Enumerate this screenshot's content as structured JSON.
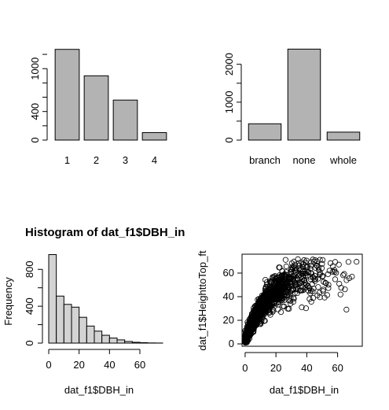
{
  "chart_data": [
    {
      "type": "bar",
      "categories": [
        "1",
        "2",
        "3",
        "4"
      ],
      "values": [
        1270,
        900,
        560,
        105
      ],
      "yticks": [
        0,
        400,
        1000
      ],
      "ylim": [
        0,
        1300
      ]
    },
    {
      "type": "bar",
      "categories": [
        "branch",
        "none",
        "whole"
      ],
      "values": [
        430,
        2400,
        210
      ],
      "yticks": [
        0,
        1000,
        2000
      ],
      "ylim": [
        0,
        2450
      ]
    },
    {
      "type": "histogram",
      "title": "Histogram of dat_f1$DBH_in",
      "xlabel": "dat_f1$DBH_in",
      "ylabel": "Frequency",
      "bins": [
        0,
        5,
        10,
        15,
        20,
        25,
        30,
        35,
        40,
        45,
        50,
        55,
        60,
        65,
        70,
        75
      ],
      "values": [
        960,
        510,
        420,
        390,
        280,
        185,
        130,
        85,
        55,
        35,
        18,
        9,
        5,
        2,
        1
      ],
      "xticks": [
        0,
        20,
        40,
        60
      ],
      "yticks": [
        0,
        400,
        800
      ],
      "xlim": [
        0,
        75
      ],
      "ylim": [
        0,
        990
      ]
    },
    {
      "type": "scatter",
      "xlabel": "dat_f1$DBH_in",
      "ylabel": "dat_f1$HeighttoTop_ft",
      "xticks": [
        0,
        20,
        40,
        60
      ],
      "yticks": [
        0,
        20,
        40,
        60
      ],
      "xlim": [
        -2,
        76
      ],
      "ylim": [
        -2,
        76
      ],
      "n_points": 1400,
      "trend": "increasing, height rises from about 5 ft at 0 in to about 55 ft above 40 in, then levels off"
    }
  ]
}
